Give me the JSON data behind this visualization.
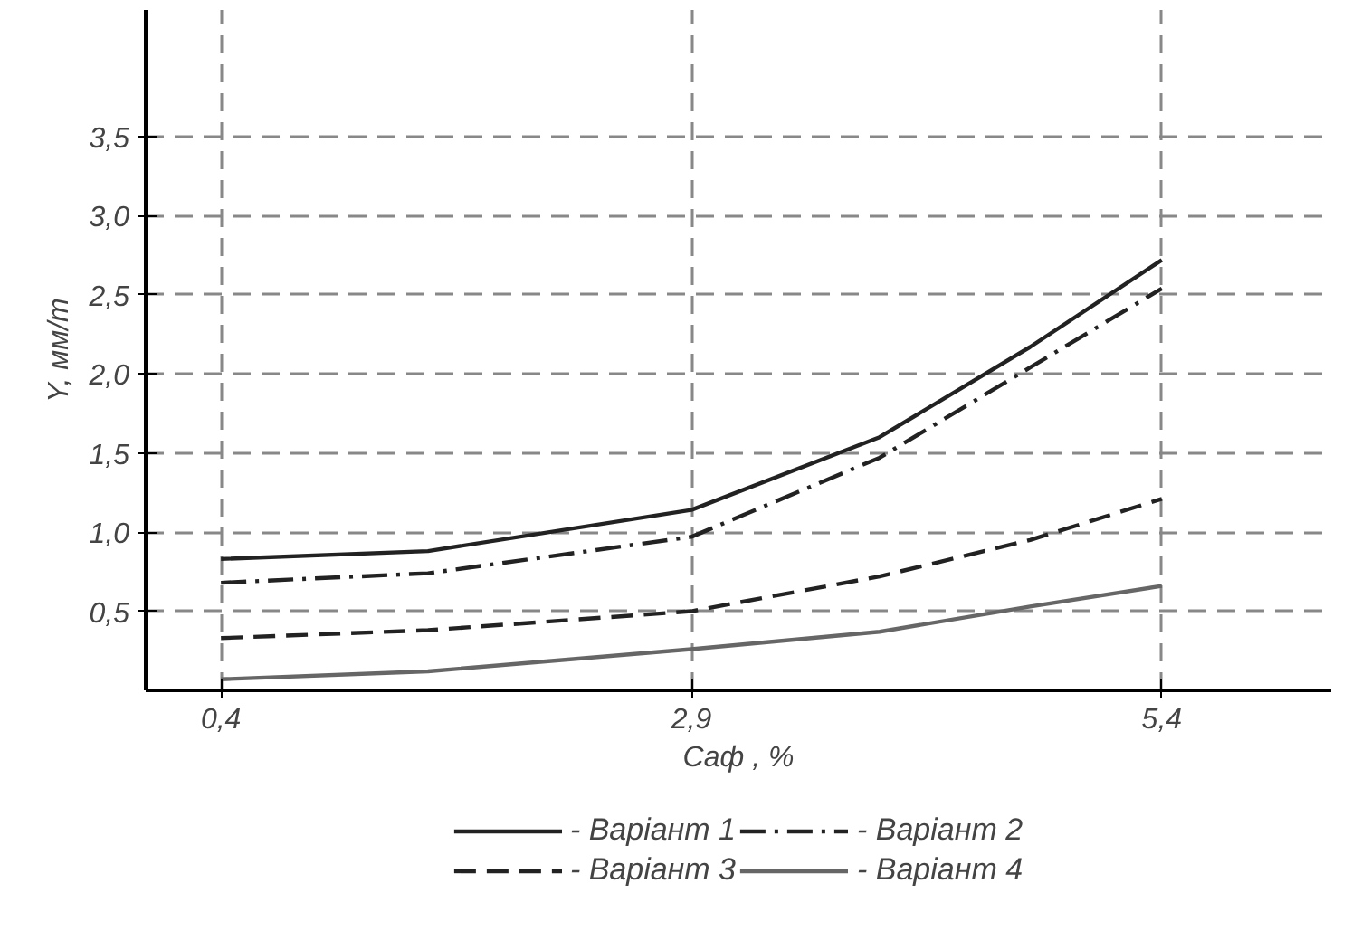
{
  "chart_data": {
    "type": "line",
    "xlabel": "Cаф , %",
    "ylabel": "Y, мм/т",
    "xlim": [
      0,
      6.3
    ],
    "ylim": [
      0,
      4.3
    ],
    "xticks": [
      {
        "value": 0.4,
        "label": "0,4"
      },
      {
        "value": 2.9,
        "label": "2,9"
      },
      {
        "value": 5.4,
        "label": "5,4"
      }
    ],
    "yticks": [
      {
        "value": 0.5,
        "label": "0,5"
      },
      {
        "value": 1.0,
        "label": "1,0"
      },
      {
        "value": 1.5,
        "label": "1,5"
      },
      {
        "value": 2.0,
        "label": "2,0"
      },
      {
        "value": 2.5,
        "label": "2,5"
      },
      {
        "value": 3.0,
        "label": "3,0"
      },
      {
        "value": 3.5,
        "label": "3,5"
      }
    ],
    "grid": true,
    "legend": "bottom",
    "marker": "none",
    "x": [
      0.4,
      1.5,
      2.9,
      3.9,
      4.7,
      5.4
    ],
    "series": [
      {
        "name": "- Варіант 1",
        "color": "#222222",
        "line_style": "solid",
        "values": [
          0.83,
          0.88,
          1.14,
          1.6,
          2.17,
          2.72
        ]
      },
      {
        "name": "- Варіант 2",
        "color": "#222222",
        "line_style": "dashdot",
        "values": [
          0.68,
          0.74,
          0.97,
          1.47,
          2.04,
          2.54
        ]
      },
      {
        "name": "- Варіант 3",
        "color": "#222222",
        "line_style": "dashed",
        "values": [
          0.33,
          0.38,
          0.5,
          0.72,
          0.95,
          1.21
        ]
      },
      {
        "name": "- Варіант 4",
        "color": "#666666",
        "line_style": "solid",
        "values": [
          0.07,
          0.12,
          0.26,
          0.37,
          0.53,
          0.66
        ]
      }
    ]
  }
}
